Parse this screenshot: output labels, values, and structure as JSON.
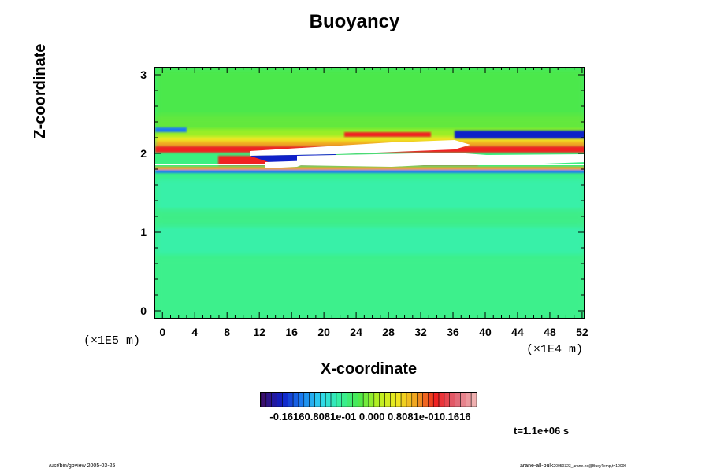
{
  "chart_data": {
    "type": "heatmap",
    "title": "Buoyancy",
    "xlabel": "X-coordinate",
    "ylabel": "Z-coordinate",
    "x_ticks": [
      "0",
      "4",
      "8",
      "12",
      "16",
      "20",
      "24",
      "28",
      "32",
      "36",
      "40",
      "44",
      "48",
      "52"
    ],
    "y_ticks": [
      "0",
      "1",
      "2",
      "3"
    ],
    "xlim": [
      -1,
      52.3
    ],
    "ylim": [
      -0.1,
      3.1
    ],
    "x_unit": "(×1E4 m)",
    "y_unit": "(×1E5 m)",
    "colorbar": {
      "labels": "-0.16160.8081e-01 0.000 0.8081e-010.1616",
      "min": -0.1616,
      "max": 0.1616,
      "colors": [
        "#3a0f6e",
        "#1020c8",
        "#1a7cf0",
        "#2fd8f0",
        "#35f0a0",
        "#4be84b",
        "#b8f020",
        "#f0e820",
        "#f0a020",
        "#f02020",
        "#e06070",
        "#f0b0b0"
      ]
    },
    "field_description_features": [
      {
        "z": 2.0,
        "x_start": 18,
        "x_end": 38,
        "sign": "positive-saturated"
      },
      {
        "z": 1.78,
        "x_start": 14,
        "x_end": 52,
        "sign": "positive-saturated"
      },
      {
        "z": 2.25,
        "x_start": 30,
        "x_end": 44,
        "sign": "negative"
      }
    ],
    "time_label": "t=1.1e+06 s"
  },
  "footer": {
    "left": "/usr/bin/gpview 2005-03-25",
    "right_main": "arane-all-bulk",
    "right_small": "20050323_arane.nc@BuoyTemp,t=10000"
  }
}
